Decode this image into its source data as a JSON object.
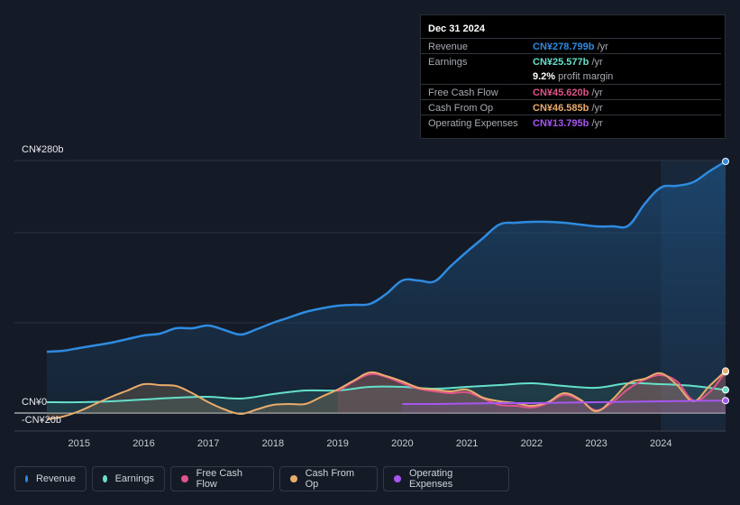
{
  "tooltip": {
    "date": "Dec 31 2024",
    "rows": [
      {
        "label": "Revenue",
        "value": "CN¥278.799b",
        "unit": "/yr",
        "color": "#2e8be0"
      },
      {
        "label": "Earnings",
        "value": "CN¥25.577b",
        "unit": "/yr",
        "color": "#65e0c9"
      },
      {
        "label": "Free Cash Flow",
        "value": "CN¥45.620b",
        "unit": "/yr",
        "color": "#e0528a"
      },
      {
        "label": "Cash From Op",
        "value": "CN¥46.585b",
        "unit": "/yr",
        "color": "#e9ac6c"
      },
      {
        "label": "Operating Expenses",
        "value": "CN¥13.795b",
        "unit": "/yr",
        "color": "#a856f0"
      }
    ],
    "margin_value": "9.2%",
    "margin_label": "profit margin"
  },
  "legend": [
    {
      "label": "Revenue",
      "color": "#2e8be0"
    },
    {
      "label": "Earnings",
      "color": "#65e0c9"
    },
    {
      "label": "Free Cash Flow",
      "color": "#e0528a"
    },
    {
      "label": "Cash From Op",
      "color": "#e9ac6c"
    },
    {
      "label": "Operating Expenses",
      "color": "#a856f0"
    }
  ],
  "chart_data": {
    "type": "line",
    "title": "",
    "unit": "CN¥ billions",
    "y_labels": [
      "CN¥280b",
      "CN¥0",
      "-CN¥20b"
    ],
    "ylim": [
      -20,
      280
    ],
    "xlim": [
      2014.5,
      2025.0
    ],
    "x_ticks": [
      "2015",
      "2016",
      "2017",
      "2018",
      "2019",
      "2020",
      "2021",
      "2022",
      "2023",
      "2024"
    ],
    "highlight_from": 2024.0,
    "series": [
      {
        "name": "Revenue",
        "color": "#2e8be0",
        "points": [
          [
            2014.5,
            68
          ],
          [
            2014.75,
            69
          ],
          [
            2015.0,
            72
          ],
          [
            2015.25,
            75
          ],
          [
            2015.5,
            78
          ],
          [
            2015.75,
            82
          ],
          [
            2016.0,
            86
          ],
          [
            2016.25,
            88
          ],
          [
            2016.5,
            94
          ],
          [
            2016.75,
            94
          ],
          [
            2017.0,
            97
          ],
          [
            2017.25,
            92
          ],
          [
            2017.5,
            87
          ],
          [
            2017.75,
            93
          ],
          [
            2018.0,
            100
          ],
          [
            2018.25,
            106
          ],
          [
            2018.5,
            112
          ],
          [
            2018.75,
            116
          ],
          [
            2019.0,
            119
          ],
          [
            2019.25,
            120
          ],
          [
            2019.5,
            121
          ],
          [
            2019.75,
            132
          ],
          [
            2020.0,
            147
          ],
          [
            2020.25,
            147
          ],
          [
            2020.5,
            146
          ],
          [
            2020.75,
            163
          ],
          [
            2021.0,
            179
          ],
          [
            2021.25,
            194
          ],
          [
            2021.5,
            209
          ],
          [
            2021.75,
            211
          ],
          [
            2022.0,
            212
          ],
          [
            2022.25,
            212
          ],
          [
            2022.5,
            211
          ],
          [
            2022.75,
            209
          ],
          [
            2023.0,
            207
          ],
          [
            2023.25,
            207
          ],
          [
            2023.5,
            208
          ],
          [
            2023.75,
            232
          ],
          [
            2024.0,
            250
          ],
          [
            2024.25,
            252
          ],
          [
            2024.5,
            256
          ],
          [
            2024.75,
            268
          ],
          [
            2025.0,
            279
          ]
        ]
      },
      {
        "name": "Earnings",
        "color": "#65e0c9",
        "points": [
          [
            2014.5,
            12
          ],
          [
            2015.0,
            12
          ],
          [
            2015.5,
            13
          ],
          [
            2016.0,
            15
          ],
          [
            2016.5,
            17
          ],
          [
            2017.0,
            18
          ],
          [
            2017.5,
            16
          ],
          [
            2018.0,
            21
          ],
          [
            2018.5,
            25
          ],
          [
            2019.0,
            25
          ],
          [
            2019.5,
            29
          ],
          [
            2020.0,
            29
          ],
          [
            2020.5,
            27
          ],
          [
            2021.0,
            29
          ],
          [
            2021.5,
            31
          ],
          [
            2022.0,
            33
          ],
          [
            2022.5,
            30
          ],
          [
            2023.0,
            28
          ],
          [
            2023.5,
            33
          ],
          [
            2024.0,
            32
          ],
          [
            2024.5,
            30
          ],
          [
            2025.0,
            25.6
          ]
        ]
      },
      {
        "name": "Free Cash Flow",
        "color": "#e0528a",
        "points": [
          [
            2019.0,
            24
          ],
          [
            2019.25,
            35
          ],
          [
            2019.5,
            43
          ],
          [
            2019.75,
            40
          ],
          [
            2020.0,
            33
          ],
          [
            2020.25,
            27
          ],
          [
            2020.5,
            24
          ],
          [
            2020.75,
            22
          ],
          [
            2021.0,
            23
          ],
          [
            2021.25,
            16
          ],
          [
            2021.5,
            9
          ],
          [
            2021.75,
            8
          ],
          [
            2022.0,
            6
          ],
          [
            2022.25,
            11
          ],
          [
            2022.5,
            20
          ],
          [
            2022.75,
            14
          ],
          [
            2023.0,
            3
          ],
          [
            2023.25,
            12
          ],
          [
            2023.5,
            27
          ],
          [
            2023.75,
            37
          ],
          [
            2024.0,
            42
          ],
          [
            2024.25,
            35
          ],
          [
            2024.5,
            14
          ],
          [
            2024.75,
            23
          ],
          [
            2025.0,
            45.6
          ]
        ]
      },
      {
        "name": "Cash From Op",
        "color": "#e9ac6c",
        "points": [
          [
            2014.5,
            -7
          ],
          [
            2014.75,
            -4
          ],
          [
            2015.0,
            2
          ],
          [
            2015.25,
            10
          ],
          [
            2015.5,
            18
          ],
          [
            2015.75,
            25
          ],
          [
            2016.0,
            32
          ],
          [
            2016.25,
            31
          ],
          [
            2016.5,
            30
          ],
          [
            2016.75,
            22
          ],
          [
            2017.0,
            12
          ],
          [
            2017.25,
            4
          ],
          [
            2017.5,
            -1
          ],
          [
            2017.75,
            4
          ],
          [
            2018.0,
            9
          ],
          [
            2018.25,
            10
          ],
          [
            2018.5,
            10
          ],
          [
            2018.75,
            18
          ],
          [
            2019.0,
            26
          ],
          [
            2019.25,
            36
          ],
          [
            2019.5,
            45
          ],
          [
            2019.75,
            41
          ],
          [
            2020.0,
            35
          ],
          [
            2020.25,
            28
          ],
          [
            2020.5,
            26
          ],
          [
            2020.75,
            24
          ],
          [
            2021.0,
            26
          ],
          [
            2021.25,
            17
          ],
          [
            2021.5,
            13
          ],
          [
            2021.75,
            11
          ],
          [
            2022.0,
            8
          ],
          [
            2022.25,
            12
          ],
          [
            2022.5,
            22
          ],
          [
            2022.75,
            15
          ],
          [
            2023.0,
            2
          ],
          [
            2023.25,
            15
          ],
          [
            2023.5,
            33
          ],
          [
            2023.75,
            38
          ],
          [
            2024.0,
            44
          ],
          [
            2024.25,
            31
          ],
          [
            2024.5,
            13
          ],
          [
            2024.75,
            30
          ],
          [
            2025.0,
            46.6
          ]
        ]
      },
      {
        "name": "Operating Expenses",
        "color": "#a856f0",
        "points": [
          [
            2020.0,
            10
          ],
          [
            2020.5,
            10
          ],
          [
            2021.0,
            10.5
          ],
          [
            2021.5,
            11
          ],
          [
            2022.0,
            11
          ],
          [
            2022.5,
            11.5
          ],
          [
            2023.0,
            12
          ],
          [
            2023.5,
            12.5
          ],
          [
            2024.0,
            13
          ],
          [
            2024.5,
            13.5
          ],
          [
            2025.0,
            13.8
          ]
        ]
      }
    ]
  }
}
